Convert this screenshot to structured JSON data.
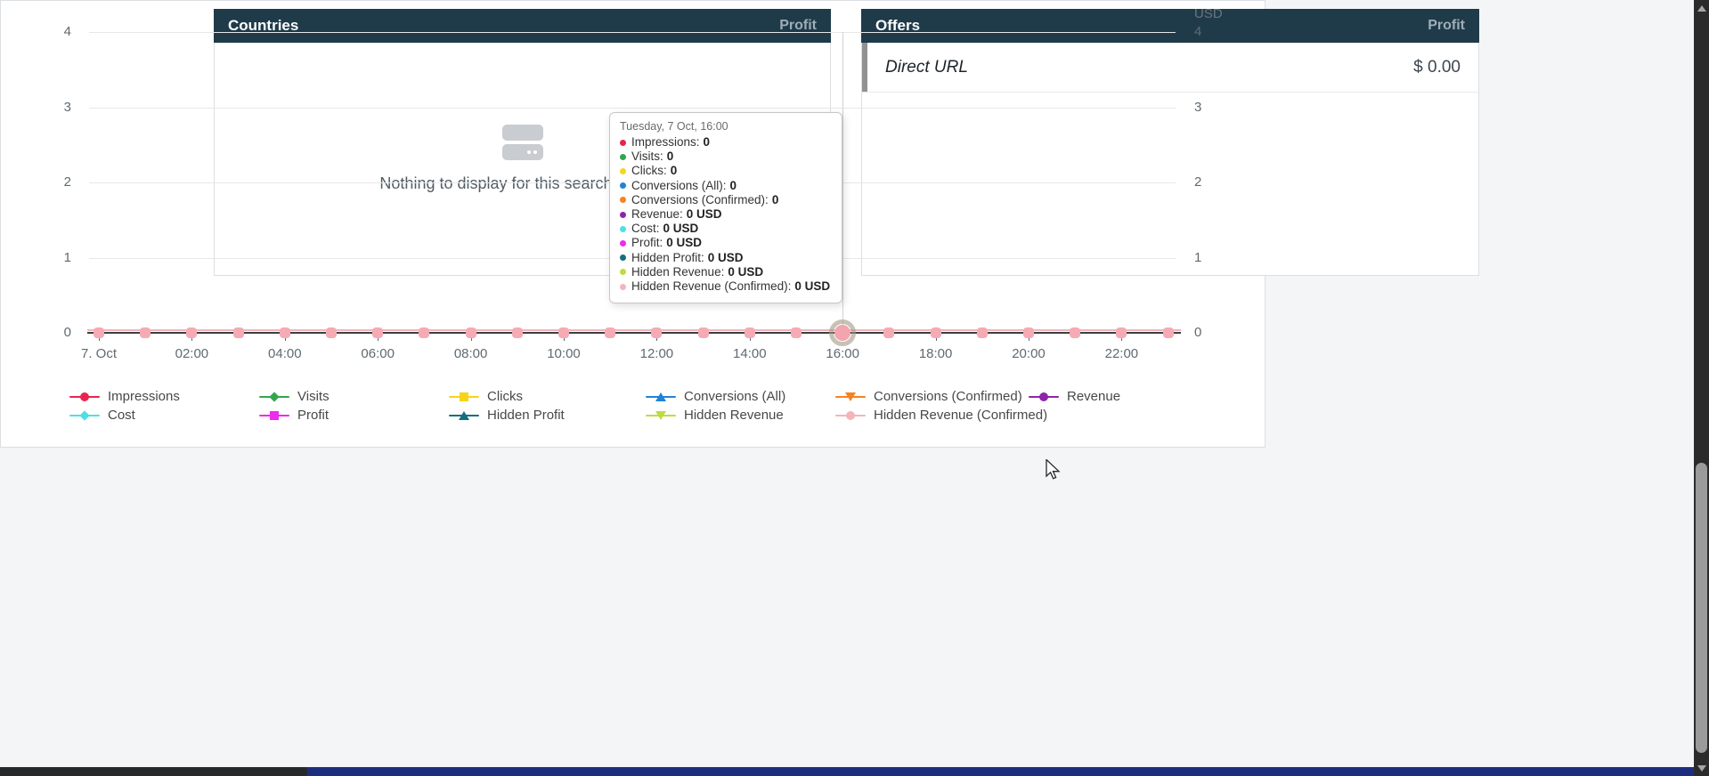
{
  "countries_panel": {
    "title": "Countries",
    "metric_label": "Profit",
    "empty_text": "Nothing to display for this search criteria"
  },
  "offers_panel": {
    "title": "Offers",
    "metric_label": "Profit",
    "rows": [
      {
        "name": "Direct URL",
        "value": "$ 0.00"
      }
    ]
  },
  "chart_data": {
    "type": "line",
    "unit": "USD",
    "right_axis_title": "USD",
    "ylim": [
      0,
      4
    ],
    "yticks": [
      0,
      1,
      2,
      3,
      4
    ],
    "grid": true,
    "legend_position": "bottom",
    "x": [
      "00:00",
      "01:00",
      "02:00",
      "03:00",
      "04:00",
      "05:00",
      "06:00",
      "07:00",
      "08:00",
      "09:00",
      "10:00",
      "11:00",
      "12:00",
      "13:00",
      "14:00",
      "15:00",
      "16:00",
      "17:00",
      "18:00",
      "19:00",
      "20:00",
      "21:00",
      "22:00",
      "23:00"
    ],
    "xtick_labels": [
      "7. Oct",
      "02:00",
      "04:00",
      "06:00",
      "08:00",
      "10:00",
      "12:00",
      "14:00",
      "16:00",
      "18:00",
      "20:00",
      "22:00"
    ],
    "hover_point": {
      "x_index": 16,
      "x_label": "16:00"
    },
    "series": [
      {
        "name": "Impressions",
        "color": "#e8254f",
        "marker": "circle",
        "values": [
          0,
          0,
          0,
          0,
          0,
          0,
          0,
          0,
          0,
          0,
          0,
          0,
          0,
          0,
          0,
          0,
          0,
          0,
          0,
          0,
          0,
          0,
          0,
          0
        ]
      },
      {
        "name": "Visits",
        "color": "#33a64c",
        "marker": "diamond",
        "values": [
          0,
          0,
          0,
          0,
          0,
          0,
          0,
          0,
          0,
          0,
          0,
          0,
          0,
          0,
          0,
          0,
          0,
          0,
          0,
          0,
          0,
          0,
          0,
          0
        ]
      },
      {
        "name": "Clicks",
        "color": "#f7d51c",
        "marker": "square",
        "values": [
          0,
          0,
          0,
          0,
          0,
          0,
          0,
          0,
          0,
          0,
          0,
          0,
          0,
          0,
          0,
          0,
          0,
          0,
          0,
          0,
          0,
          0,
          0,
          0
        ]
      },
      {
        "name": "Conversions (All)",
        "color": "#1f83d6",
        "marker": "triangle-up",
        "values": [
          0,
          0,
          0,
          0,
          0,
          0,
          0,
          0,
          0,
          0,
          0,
          0,
          0,
          0,
          0,
          0,
          0,
          0,
          0,
          0,
          0,
          0,
          0,
          0
        ]
      },
      {
        "name": "Conversions (Confirmed)",
        "color": "#f6831f",
        "marker": "triangle-down",
        "values": [
          0,
          0,
          0,
          0,
          0,
          0,
          0,
          0,
          0,
          0,
          0,
          0,
          0,
          0,
          0,
          0,
          0,
          0,
          0,
          0,
          0,
          0,
          0,
          0
        ]
      },
      {
        "name": "Revenue",
        "color": "#8e24aa",
        "marker": "circle",
        "values": [
          0,
          0,
          0,
          0,
          0,
          0,
          0,
          0,
          0,
          0,
          0,
          0,
          0,
          0,
          0,
          0,
          0,
          0,
          0,
          0,
          0,
          0,
          0,
          0
        ]
      },
      {
        "name": "Cost",
        "color": "#4ddfe6",
        "marker": "diamond",
        "values": [
          0,
          0,
          0,
          0,
          0,
          0,
          0,
          0,
          0,
          0,
          0,
          0,
          0,
          0,
          0,
          0,
          0,
          0,
          0,
          0,
          0,
          0,
          0,
          0
        ]
      },
      {
        "name": "Profit",
        "color": "#ee2bee",
        "marker": "square",
        "values": [
          0,
          0,
          0,
          0,
          0,
          0,
          0,
          0,
          0,
          0,
          0,
          0,
          0,
          0,
          0,
          0,
          0,
          0,
          0,
          0,
          0,
          0,
          0,
          0
        ]
      },
      {
        "name": "Hidden Profit",
        "color": "#166e7e",
        "marker": "triangle-up",
        "values": [
          0,
          0,
          0,
          0,
          0,
          0,
          0,
          0,
          0,
          0,
          0,
          0,
          0,
          0,
          0,
          0,
          0,
          0,
          0,
          0,
          0,
          0,
          0,
          0
        ]
      },
      {
        "name": "Hidden Revenue",
        "color": "#bedc3e",
        "marker": "triangle-down",
        "values": [
          0,
          0,
          0,
          0,
          0,
          0,
          0,
          0,
          0,
          0,
          0,
          0,
          0,
          0,
          0,
          0,
          0,
          0,
          0,
          0,
          0,
          0,
          0,
          0
        ]
      },
      {
        "name": "Hidden Revenue (Confirmed)",
        "color": "#f5b4ba",
        "marker": "circle",
        "values": [
          0,
          0,
          0,
          0,
          0,
          0,
          0,
          0,
          0,
          0,
          0,
          0,
          0,
          0,
          0,
          0,
          0,
          0,
          0,
          0,
          0,
          0,
          0,
          0
        ]
      }
    ]
  },
  "tooltip": {
    "title": "Tuesday, 7 Oct, 16:00",
    "rows": [
      {
        "label": "Impressions",
        "value": "0",
        "color": "#e8254f"
      },
      {
        "label": "Visits",
        "value": "0",
        "color": "#33a64c"
      },
      {
        "label": "Clicks",
        "value": "0",
        "color": "#f7d51c"
      },
      {
        "label": "Conversions (All)",
        "value": "0",
        "color": "#1f83d6"
      },
      {
        "label": "Conversions (Confirmed)",
        "value": "0",
        "color": "#f6831f"
      },
      {
        "label": "Revenue",
        "value": "0 USD",
        "color": "#8e24aa"
      },
      {
        "label": "Cost",
        "value": "0 USD",
        "color": "#4ddfe6"
      },
      {
        "label": "Profit",
        "value": "0 USD",
        "color": "#ee2bee"
      },
      {
        "label": "Hidden Profit",
        "value": "0 USD",
        "color": "#166e7e"
      },
      {
        "label": "Hidden Revenue",
        "value": "0 USD",
        "color": "#bedc3e"
      },
      {
        "label": "Hidden Revenue (Confirmed)",
        "value": "0 USD",
        "color": "#f5b4ba"
      }
    ]
  }
}
